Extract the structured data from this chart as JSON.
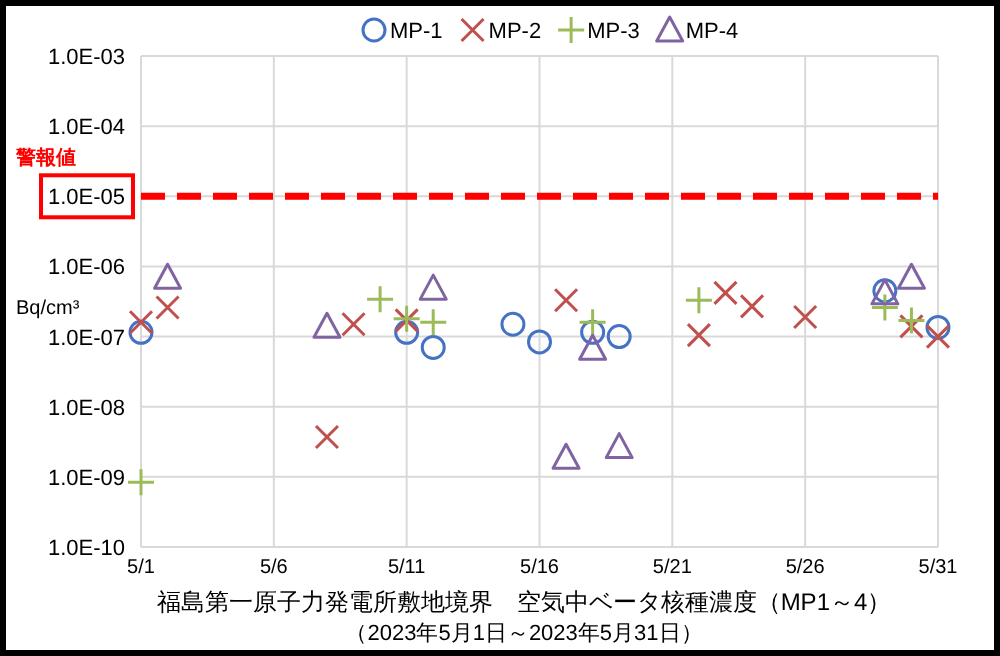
{
  "chart_data": {
    "type": "scatter",
    "title": "福島第一原子力発電所敷地境界　空気中ベータ核種濃度（MP1～4）",
    "subtitle": "（2023年5月1日～2023年5月31日）",
    "ylabel": "Bq/cm³",
    "log": true,
    "grid": true,
    "legend": "top",
    "xlim": [
      "2023-05-01",
      "2023-05-31"
    ],
    "xticks": [
      {
        "value": "2023-05-01",
        "label": "5/1"
      },
      {
        "value": "2023-05-06",
        "label": "5/6"
      },
      {
        "value": "2023-05-11",
        "label": "5/11"
      },
      {
        "value": "2023-05-16",
        "label": "5/16"
      },
      {
        "value": "2023-05-21",
        "label": "5/21"
      },
      {
        "value": "2023-05-26",
        "label": "5/26"
      },
      {
        "value": "2023-05-31",
        "label": "5/31"
      }
    ],
    "ylim": [
      1e-10,
      0.001
    ],
    "yticks": [
      {
        "value": 1e-10,
        "label": "1.0E-10"
      },
      {
        "value": 1e-09,
        "label": "1.0E-09"
      },
      {
        "value": 1e-08,
        "label": "1.0E-08"
      },
      {
        "value": 1e-07,
        "label": "1.0E-07"
      },
      {
        "value": 1e-06,
        "label": "1.0E-06"
      },
      {
        "value": 1e-05,
        "label": "1.0E-05"
      },
      {
        "value": 0.0001,
        "label": "1.0E-04"
      },
      {
        "value": 0.001,
        "label": "1.0E-03"
      }
    ],
    "ref_lines": [
      {
        "axis": "y",
        "value": 1e-05,
        "label": "警報値",
        "color": "#ff0000",
        "line_style": "dashed"
      }
    ],
    "series": [
      {
        "name": "MP-1",
        "color": "#4472c4",
        "marker": "circle",
        "x": [
          "2023-05-01",
          "2023-05-11",
          "2023-05-12",
          "2023-05-15",
          "2023-05-16",
          "2023-05-18",
          "2023-05-19",
          "2023-05-29",
          "2023-05-31"
        ],
        "values": [
          1.15e-07,
          1.15e-07,
          7e-08,
          1.5e-07,
          8.4e-08,
          1.15e-07,
          1e-07,
          4.5e-07,
          1.35e-07
        ]
      },
      {
        "name": "MP-2",
        "color": "#c0504d",
        "marker": "cross",
        "x": [
          "2023-05-01",
          "2023-05-02",
          "2023-05-08",
          "2023-05-09",
          "2023-05-11",
          "2023-05-17",
          "2023-05-22",
          "2023-05-23",
          "2023-05-24",
          "2023-05-26",
          "2023-05-30",
          "2023-05-31"
        ],
        "values": [
          1.6e-07,
          2.6e-07,
          3.7e-09,
          1.5e-07,
          1.7e-07,
          3.3e-07,
          1.05e-07,
          4.2e-07,
          2.7e-07,
          1.9e-07,
          1.4e-07,
          1e-07
        ]
      },
      {
        "name": "MP-3",
        "color": "#9bbb59",
        "marker": "plus",
        "x": [
          "2023-05-01",
          "2023-05-10",
          "2023-05-11",
          "2023-05-12",
          "2023-05-18",
          "2023-05-22",
          "2023-05-29",
          "2023-05-30"
        ],
        "values": [
          8.4e-10,
          3.4e-07,
          1.8e-07,
          1.6e-07,
          1.6e-07,
          3.3e-07,
          2.6e-07,
          1.7e-07
        ]
      },
      {
        "name": "MP-4",
        "color": "#8064a2",
        "marker": "triangle",
        "x": [
          "2023-05-02",
          "2023-05-08",
          "2023-05-12",
          "2023-05-17",
          "2023-05-18",
          "2023-05-19",
          "2023-05-29",
          "2023-05-30"
        ],
        "values": [
          7e-07,
          1.4e-07,
          4.9e-07,
          1.9e-09,
          6.8e-08,
          2.7e-09,
          4.2e-07,
          7e-07
        ]
      }
    ]
  }
}
